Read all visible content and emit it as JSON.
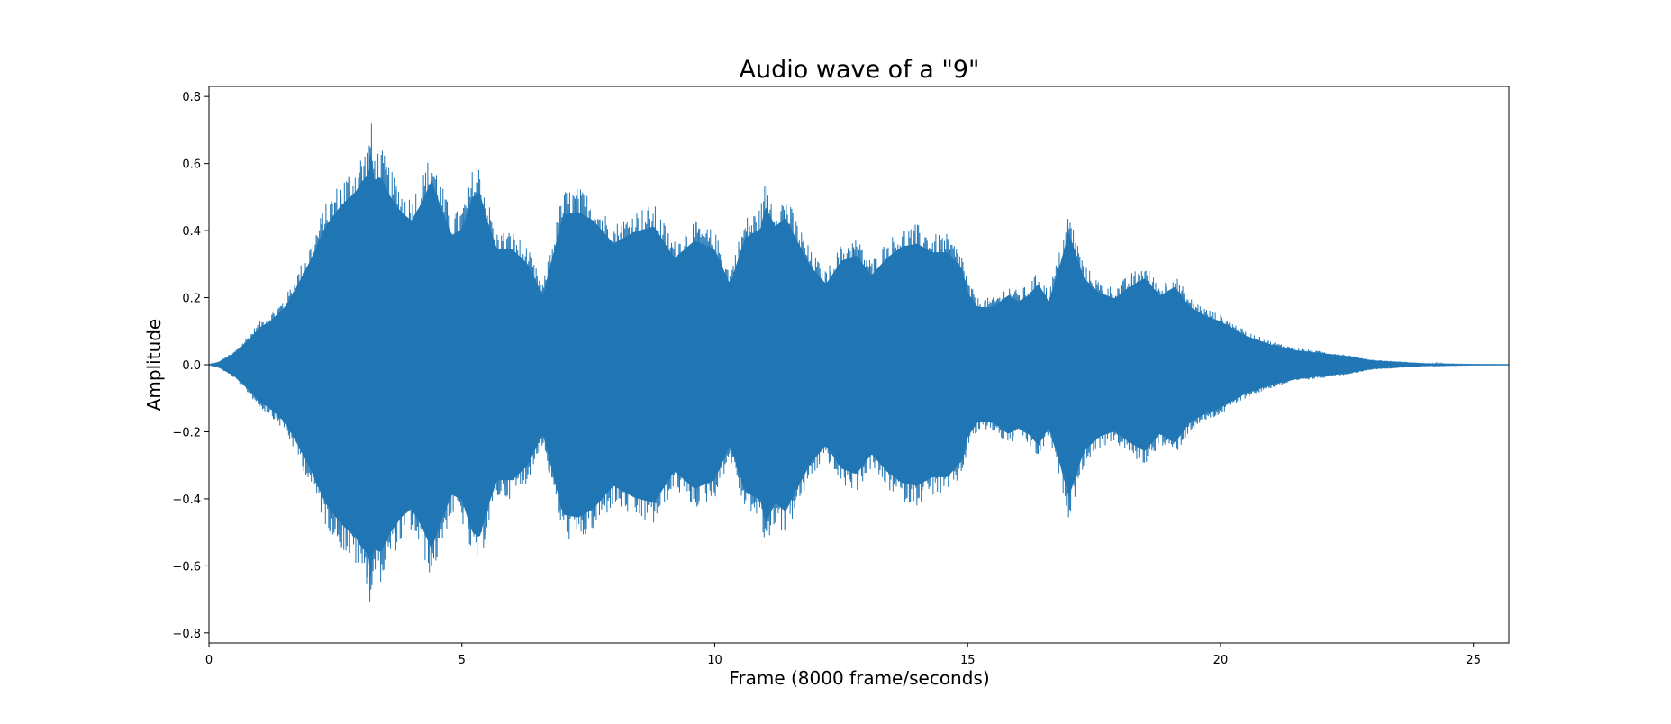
{
  "chart_data": {
    "type": "line",
    "title": "Audio wave of a \"9\"",
    "xlabel": "Frame (8000 frame/seconds)",
    "ylabel": "Amplitude",
    "xlim": [
      0,
      25.7
    ],
    "ylim": [
      -0.83,
      0.83
    ],
    "x_ticks": [
      0,
      5,
      10,
      15,
      20,
      25
    ],
    "x_tick_labels": [
      "0",
      "5",
      "10",
      "15",
      "20",
      "25"
    ],
    "y_ticks": [
      0.8,
      0.6,
      0.4,
      0.2,
      0.0,
      -0.2,
      -0.4,
      -0.6,
      -0.8
    ],
    "y_tick_labels": [
      "0.8",
      "0.6",
      "0.4",
      "0.2",
      "0.0",
      "−0.2",
      "−0.4",
      "−0.6",
      "−0.8"
    ],
    "grid": false,
    "legend": "none",
    "series_color": "#2176b4",
    "series": [
      {
        "x": [
          0,
          0.2,
          0.5,
          0.8,
          1.0,
          1.2,
          1.5,
          1.7,
          2.0,
          2.3,
          2.6,
          2.9,
          3.0,
          3.15,
          3.2,
          3.25,
          3.4,
          3.6,
          3.8,
          4.0,
          4.2,
          4.4,
          4.6,
          4.8,
          5.0,
          5.2,
          5.35,
          5.5,
          5.7,
          6.0,
          6.3,
          6.6,
          6.8,
          7.0,
          7.3,
          7.6,
          8.0,
          8.4,
          8.8,
          9.2,
          9.6,
          10.0,
          10.3,
          10.6,
          10.9,
          11.0,
          11.2,
          11.4,
          11.6,
          11.9,
          12.2,
          12.5,
          12.8,
          13.1,
          13.4,
          13.7,
          14.0,
          14.3,
          14.6,
          14.9,
          15.0,
          15.2,
          15.5,
          15.8,
          16.0,
          16.2,
          16.4,
          16.6,
          16.8,
          17.0,
          17.3,
          17.6,
          17.9,
          18.2,
          18.5,
          18.8,
          19.1,
          19.4,
          19.7,
          20.0,
          20.5,
          21.0,
          21.5,
          22.0,
          22.5,
          23.0,
          23.5,
          24.0,
          24.5,
          25.0,
          25.7
        ],
        "env_upper": [
          0.0,
          0.01,
          0.04,
          0.09,
          0.13,
          0.15,
          0.2,
          0.26,
          0.36,
          0.48,
          0.55,
          0.6,
          0.63,
          0.66,
          0.75,
          0.64,
          0.65,
          0.58,
          0.53,
          0.5,
          0.56,
          0.64,
          0.54,
          0.45,
          0.47,
          0.58,
          0.6,
          0.5,
          0.4,
          0.4,
          0.35,
          0.24,
          0.38,
          0.52,
          0.53,
          0.5,
          0.42,
          0.46,
          0.48,
          0.37,
          0.43,
          0.4,
          0.28,
          0.44,
          0.47,
          0.55,
          0.48,
          0.51,
          0.44,
          0.34,
          0.28,
          0.36,
          0.38,
          0.31,
          0.37,
          0.41,
          0.42,
          0.39,
          0.39,
          0.33,
          0.25,
          0.2,
          0.2,
          0.24,
          0.22,
          0.24,
          0.28,
          0.22,
          0.33,
          0.46,
          0.3,
          0.25,
          0.23,
          0.27,
          0.3,
          0.24,
          0.27,
          0.2,
          0.17,
          0.15,
          0.1,
          0.07,
          0.05,
          0.04,
          0.03,
          0.015,
          0.01,
          0.005,
          0.002,
          0.001,
          0.0
        ],
        "env_lower": [
          0.0,
          0.01,
          0.04,
          0.09,
          0.13,
          0.15,
          0.2,
          0.26,
          0.36,
          0.48,
          0.55,
          0.6,
          0.63,
          0.66,
          0.75,
          0.64,
          0.65,
          0.58,
          0.53,
          0.5,
          0.56,
          0.64,
          0.54,
          0.45,
          0.47,
          0.58,
          0.6,
          0.5,
          0.4,
          0.4,
          0.35,
          0.24,
          0.38,
          0.52,
          0.53,
          0.5,
          0.42,
          0.46,
          0.48,
          0.37,
          0.43,
          0.4,
          0.28,
          0.44,
          0.47,
          0.55,
          0.48,
          0.51,
          0.44,
          0.34,
          0.28,
          0.36,
          0.38,
          0.31,
          0.37,
          0.41,
          0.42,
          0.39,
          0.39,
          0.33,
          0.25,
          0.2,
          0.2,
          0.24,
          0.22,
          0.24,
          0.28,
          0.22,
          0.33,
          0.46,
          0.3,
          0.25,
          0.23,
          0.27,
          0.3,
          0.24,
          0.27,
          0.2,
          0.17,
          0.15,
          0.1,
          0.07,
          0.05,
          0.04,
          0.03,
          0.015,
          0.01,
          0.005,
          0.002,
          0.001,
          0.0
        ]
      }
    ]
  }
}
